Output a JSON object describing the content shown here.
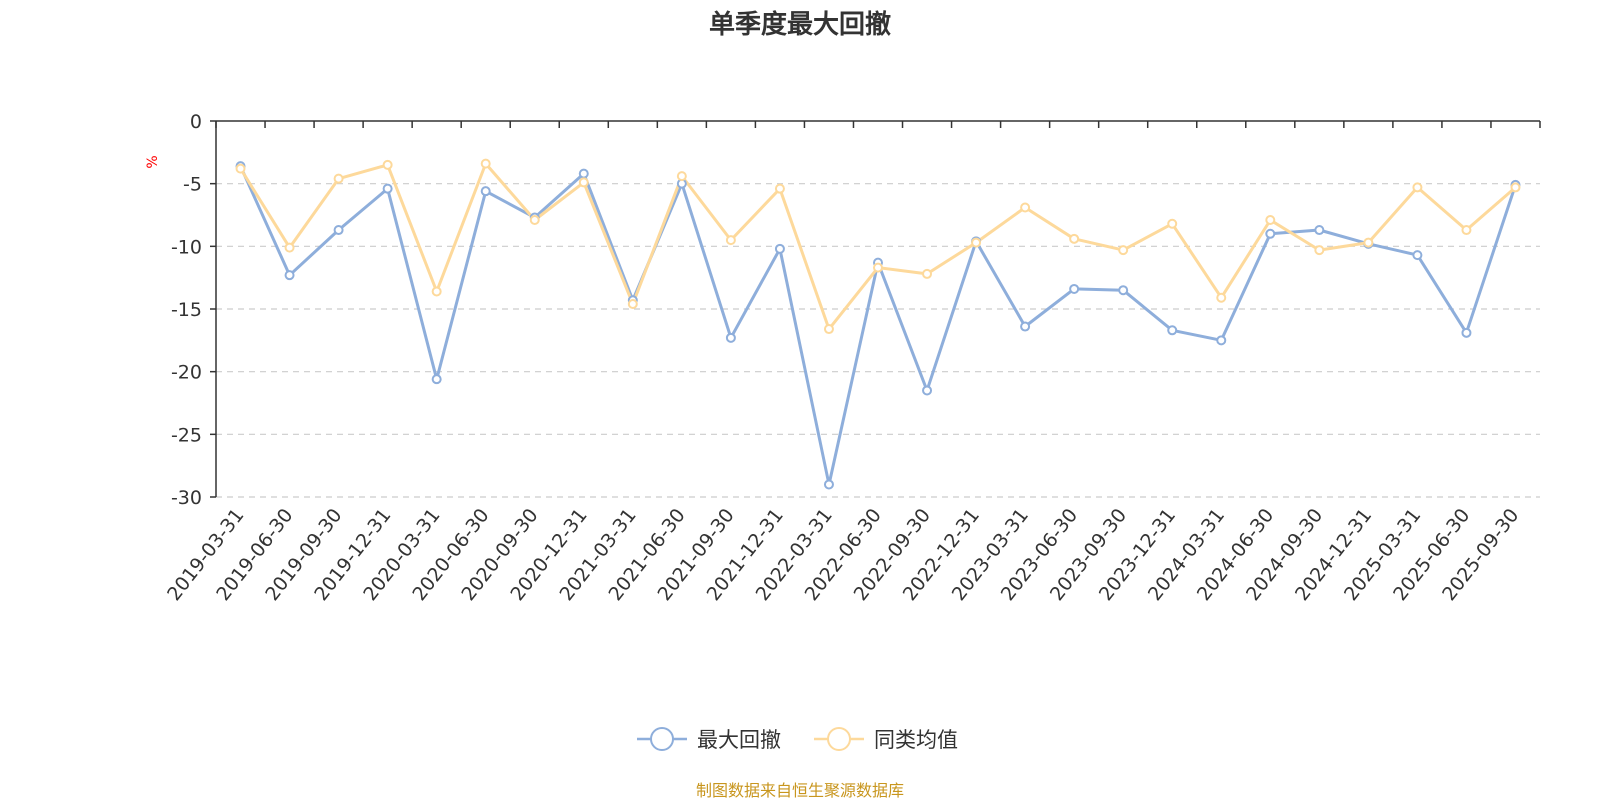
{
  "chart_data": {
    "type": "line",
    "title": "单季度最大回撤",
    "ylabel": "%",
    "ylim": [
      -30,
      0
    ],
    "yticks": [
      0,
      -5,
      -10,
      -15,
      -20,
      -25,
      -30
    ],
    "grid": true,
    "legend_position": "bottom",
    "categories": [
      "2019-03-31",
      "2019-06-30",
      "2019-09-30",
      "2019-12-31",
      "2020-03-31",
      "2020-06-30",
      "2020-09-30",
      "2020-12-31",
      "2021-03-31",
      "2021-06-30",
      "2021-09-30",
      "2021-12-31",
      "2022-03-31",
      "2022-06-30",
      "2022-09-30",
      "2022-12-31",
      "2023-03-31",
      "2023-06-30",
      "2023-09-30",
      "2023-12-31",
      "2024-03-31",
      "2024-06-30",
      "2024-09-30",
      "2024-12-31",
      "2025-03-31",
      "2025-06-30",
      "2025-09-30"
    ],
    "series": [
      {
        "name": "最大回撤",
        "color": "#8eaedb",
        "values": [
          -3.6,
          -12.3,
          -8.7,
          -5.4,
          -20.6,
          -5.6,
          -7.7,
          -4.2,
          -14.3,
          -5.0,
          -17.3,
          -10.2,
          -29.0,
          -11.3,
          -21.5,
          -9.6,
          -16.4,
          -13.4,
          -13.5,
          -16.7,
          -17.5,
          -9.0,
          -8.7,
          -9.8,
          -10.7,
          -16.9,
          -5.1
        ]
      },
      {
        "name": "同类均值",
        "color": "#fdd99b",
        "values": [
          -3.8,
          -10.1,
          -4.6,
          -3.5,
          -13.6,
          -3.4,
          -7.9,
          -4.9,
          -14.6,
          -4.4,
          -9.5,
          -5.4,
          -16.6,
          -11.7,
          -12.2,
          -9.7,
          -6.9,
          -9.4,
          -10.3,
          -8.2,
          -14.1,
          -7.9,
          -10.3,
          -9.7,
          -5.3,
          -8.7,
          -5.3
        ]
      }
    ],
    "source_note": "制图数据来自恒生聚源数据库",
    "source_color": "#c8961e",
    "unit_color": "#ff0000"
  }
}
